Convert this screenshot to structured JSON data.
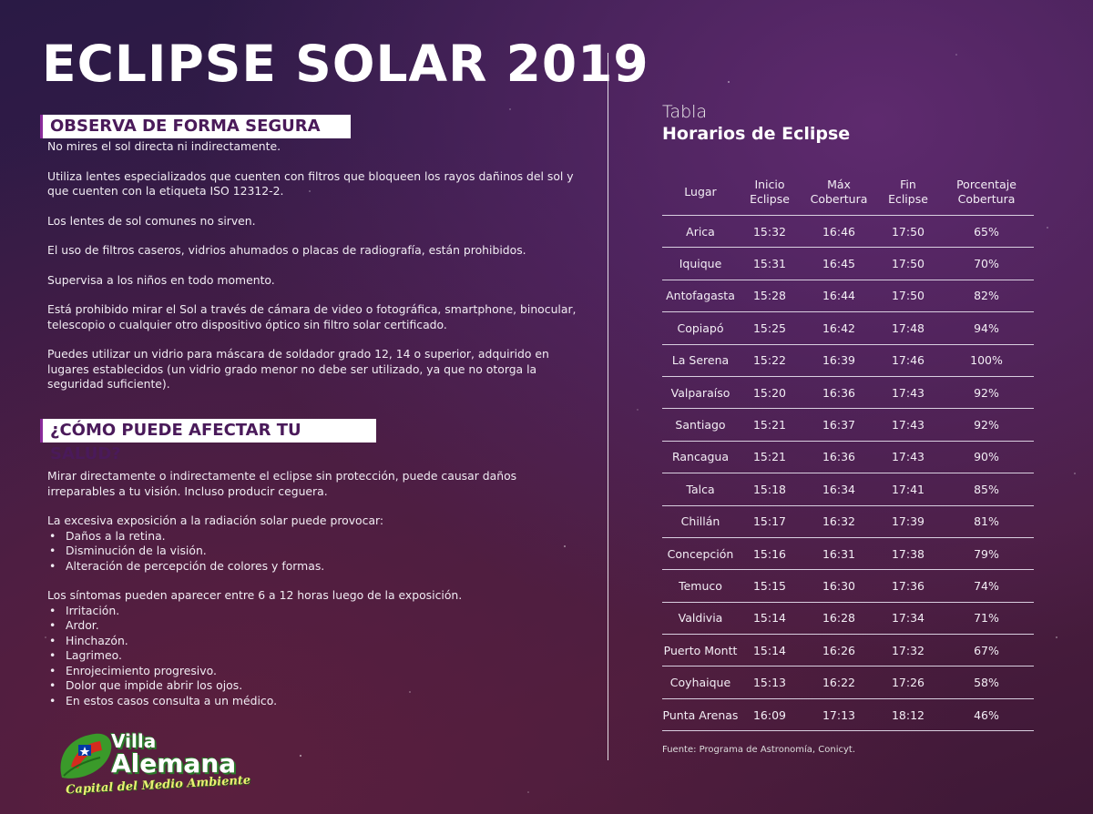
{
  "title": "ECLIPSE SOLAR 2019",
  "section1": {
    "heading": "OBSERVA DE FORMA SEGURA",
    "paragraphs": [
      "No mires el sol directa ni indirectamente.",
      "Utiliza lentes especializados que cuenten con filtros que bloqueen los rayos dañinos del sol y que cuenten con la etiqueta ISO 12312-2.",
      "Los lentes de sol comunes no sirven.",
      "El uso de filtros caseros, vidrios ahumados o placas de radiografía, están prohibidos.",
      "Supervisa a los niños en todo momento.",
      "Está prohibido mirar el Sol a través de cámara de video o fotográfica, smartphone, binocular, telescopio o cualquier otro dispositivo óptico sin filtro solar certificado.",
      "Puedes utilizar un vidrio para máscara de soldador grado 12, 14 o superior, adquirido en lugares establecidos (un vidrio grado menor no debe ser utilizado, ya que no otorga la seguridad suficiente)."
    ]
  },
  "section2": {
    "heading": "¿CÓMO PUEDE AFECTAR TU SALUD?",
    "intro": "Mirar directamente o indirectamente el eclipse sin protección, puede causar daños irreparables a tu visión. Incluso producir ceguera.",
    "list1_intro": "La excesiva exposición a la radiación solar puede provocar:",
    "list1": [
      "Daños a la retina.",
      "Disminución de la visión.",
      "Alteración de percepción de colores y formas."
    ],
    "list2_intro": "Los síntomas pueden aparecer entre 6 a 12 horas luego de la exposición.",
    "list2": [
      "Irritación.",
      "Ardor.",
      "Hinchazón.",
      "Lagrimeo.",
      "Enrojecimiento progresivo.",
      "Dolor que impide abrir los ojos.",
      "En estos casos consulta a un médico."
    ]
  },
  "table": {
    "label": "Tabla",
    "title": "Horarios de Eclipse",
    "headers": [
      {
        "line1": "Lugar",
        "line2": ""
      },
      {
        "line1": "Inicio",
        "line2": "Eclipse"
      },
      {
        "line1": "Máx",
        "line2": "Cobertura"
      },
      {
        "line1": "Fin",
        "line2": "Eclipse"
      },
      {
        "line1": "Porcentaje",
        "line2": "Cobertura"
      }
    ],
    "rows": [
      [
        "Arica",
        "15:32",
        "16:46",
        "17:50",
        "65%"
      ],
      [
        "Iquique",
        "15:31",
        "16:45",
        "17:50",
        "70%"
      ],
      [
        "Antofagasta",
        "15:28",
        "16:44",
        "17:50",
        "82%"
      ],
      [
        "Copiapó",
        "15:25",
        "16:42",
        "17:48",
        "94%"
      ],
      [
        "La Serena",
        "15:22",
        "16:39",
        "17:46",
        "100%"
      ],
      [
        "Valparaíso",
        "15:20",
        "16:36",
        "17:43",
        "92%"
      ],
      [
        "Santiago",
        "15:21",
        "16:37",
        "17:43",
        "92%"
      ],
      [
        "Rancagua",
        "15:21",
        "16:36",
        "17:43",
        "90%"
      ],
      [
        "Talca",
        "15:18",
        "16:34",
        "17:41",
        "85%"
      ],
      [
        "Chillán",
        "15:17",
        "16:32",
        "17:39",
        "81%"
      ],
      [
        "Concepción",
        "15:16",
        "16:31",
        "17:38",
        "79%"
      ],
      [
        "Temuco",
        "15:15",
        "16:30",
        "17:36",
        "74%"
      ],
      [
        "Valdivia",
        "15:14",
        "16:28",
        "17:34",
        "71%"
      ],
      [
        "Puerto Montt",
        "15:14",
        "16:26",
        "17:32",
        "67%"
      ],
      [
        "Coyhaique",
        "15:13",
        "16:22",
        "17:26",
        "58%"
      ],
      [
        "Punta Arenas",
        "16:09",
        "17:13",
        "18:12",
        "46%"
      ]
    ],
    "source": "Fuente: Programa de Astronomía, Conicyt."
  },
  "logo": {
    "line1": "Villa",
    "line2": "Alemana",
    "tagline": "Capital del Medio Ambiente"
  },
  "colors": {
    "heading_bg": "#ffffff",
    "heading_text": "#4a1a5a",
    "flag_red": "#d52b1e",
    "flag_blue": "#0039a6",
    "leaf_green": "#3a9a2a"
  }
}
